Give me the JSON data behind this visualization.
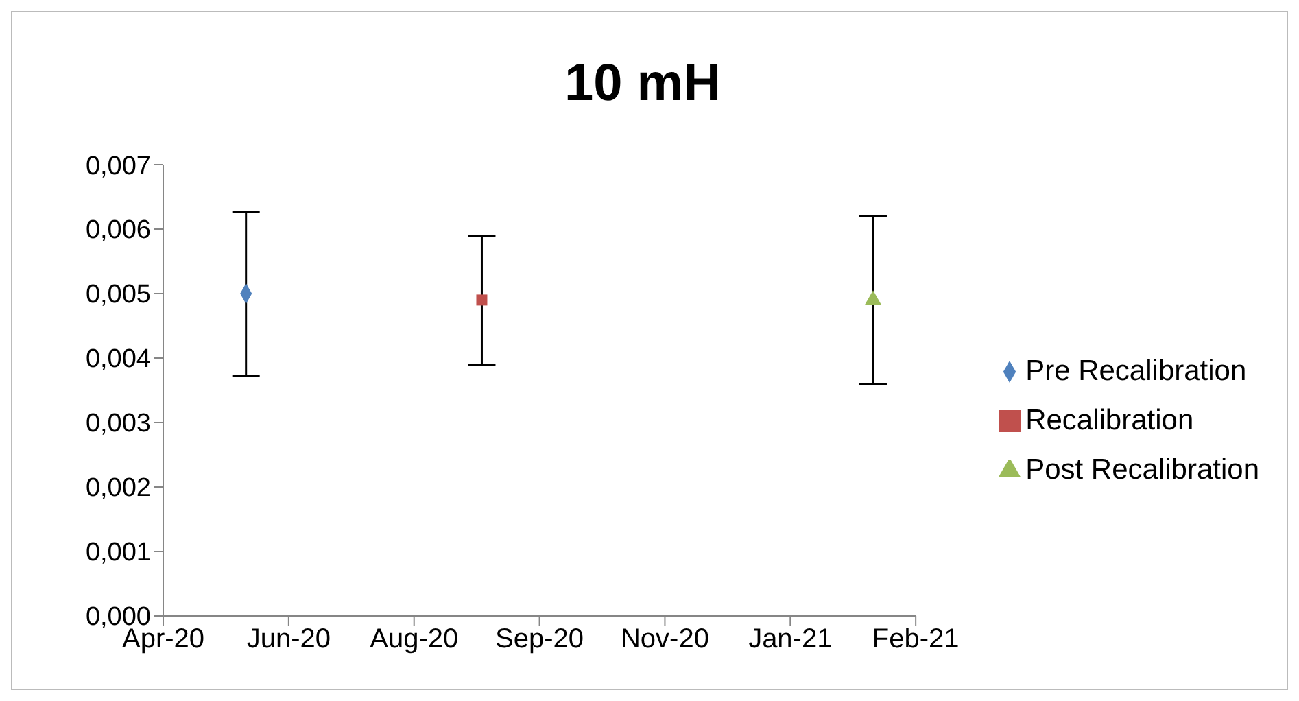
{
  "chart_data": {
    "type": "scatter",
    "title": "10 mH",
    "xlim": [
      "2020-04-30",
      "2021-02-24"
    ],
    "xticks": [
      {
        "value": "2020-04-30",
        "label": "Apr-20"
      },
      {
        "value": "2020-06-19",
        "label": "Jun-20"
      },
      {
        "value": "2020-08-08",
        "label": "Aug-20"
      },
      {
        "value": "2020-09-27",
        "label": "Sep-20"
      },
      {
        "value": "2020-11-16",
        "label": "Nov-20"
      },
      {
        "value": "2021-01-05",
        "label": "Jan-21"
      },
      {
        "value": "2021-02-24",
        "label": "Feb-21"
      }
    ],
    "ylim": [
      0,
      0.007
    ],
    "yticks": [
      {
        "value": 0,
        "label": "0,000"
      },
      {
        "value": 0.001,
        "label": "0,001"
      },
      {
        "value": 0.002,
        "label": "0,002"
      },
      {
        "value": 0.003,
        "label": "0,003"
      },
      {
        "value": 0.004,
        "label": "0,004"
      },
      {
        "value": 0.005,
        "label": "0,005"
      },
      {
        "value": 0.006,
        "label": "0,006"
      },
      {
        "value": 0.007,
        "label": "0,007"
      }
    ],
    "grid": false,
    "legend": "right",
    "series": [
      {
        "name": "Pre Recalibration",
        "color": "#4f81bd",
        "marker": "diamond",
        "x": [
          "2020-06-02"
        ],
        "values": [
          0.005
        ],
        "errors": [
          0.00127
        ]
      },
      {
        "name": "Recalibration",
        "color": "#c0504d",
        "marker": "square",
        "x": [
          "2020-09-04"
        ],
        "values": [
          0.0049
        ],
        "errors": [
          0.001
        ]
      },
      {
        "name": "Post Recalibration",
        "color": "#9bbb59",
        "marker": "triangle",
        "x": [
          "2021-02-07"
        ],
        "values": [
          0.0049
        ],
        "errors": [
          0.0013
        ]
      }
    ]
  }
}
